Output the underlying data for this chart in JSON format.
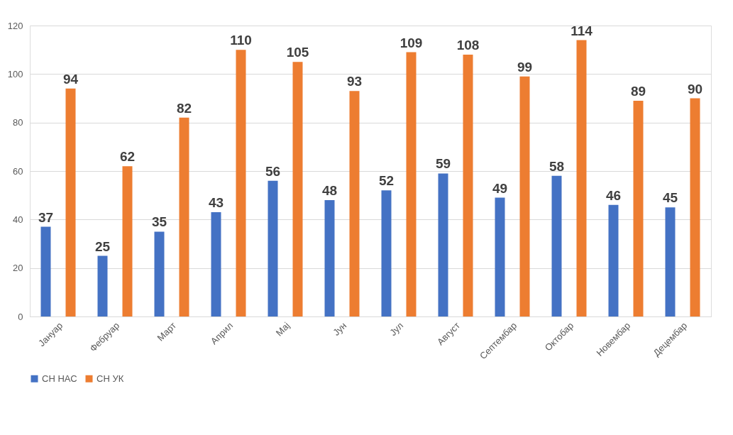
{
  "chart_data": {
    "type": "bar",
    "categories": [
      "Јануар",
      "Фебруар",
      "Март",
      "Април",
      "Мај",
      "Јун",
      "Јул",
      "Август",
      "Септембар",
      "Октобар",
      "Новембар",
      "Децембар"
    ],
    "series": [
      {
        "name": "СН НАС",
        "color": "#4472c4",
        "values": [
          37,
          25,
          35,
          43,
          56,
          48,
          52,
          59,
          49,
          58,
          46,
          45
        ]
      },
      {
        "name": "СН УК",
        "color": "#ed7d31",
        "values": [
          94,
          62,
          82,
          110,
          105,
          93,
          109,
          108,
          99,
          114,
          89,
          90
        ]
      }
    ],
    "ylim": [
      0,
      120
    ],
    "yticks": [
      0,
      20,
      40,
      60,
      80,
      100,
      120
    ],
    "grid": "y",
    "legend": "bottom",
    "data_labels": true
  }
}
